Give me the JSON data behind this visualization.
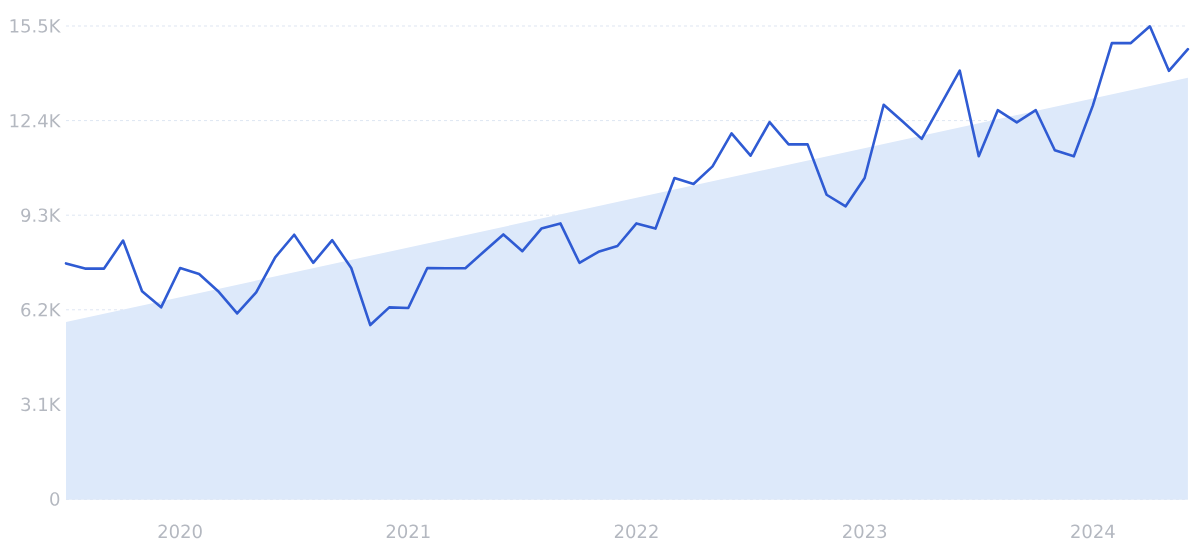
{
  "chart_data": {
    "type": "line",
    "x": [
      "2019-07",
      "2019-08",
      "2019-09",
      "2019-10",
      "2019-11",
      "2019-12",
      "2020-01",
      "2020-02",
      "2020-03",
      "2020-04",
      "2020-05",
      "2020-06",
      "2020-07",
      "2020-08",
      "2020-09",
      "2020-10",
      "2020-11",
      "2020-12",
      "2021-01",
      "2021-02",
      "2021-03",
      "2021-04",
      "2021-05",
      "2021-06",
      "2021-07",
      "2021-08",
      "2021-09",
      "2021-10",
      "2021-11",
      "2021-12",
      "2022-01",
      "2022-02",
      "2022-03",
      "2022-04",
      "2022-05",
      "2022-06",
      "2022-07",
      "2022-08",
      "2022-09",
      "2022-10",
      "2022-11",
      "2022-12",
      "2023-01",
      "2023-02",
      "2023-03",
      "2023-04",
      "2023-05",
      "2023-06",
      "2023-07",
      "2023-08",
      "2023-09",
      "2023-10",
      "2023-11",
      "2023-12",
      "2024-01",
      "2024-02",
      "2024-03",
      "2024-04",
      "2024-05",
      "2024-06"
    ],
    "series": [
      {
        "type": "area",
        "color": "#dde9fa",
        "x": [
          "2019-07",
          "2024-06"
        ],
        "values": [
          5800,
          13800
        ]
      },
      {
        "color": "#2f5bd3",
        "values": [
          7720,
          7550,
          7550,
          8470,
          6810,
          6280,
          7570,
          7370,
          6810,
          6080,
          6770,
          7920,
          8660,
          7740,
          8480,
          7570,
          5700,
          6280,
          6260,
          7570,
          7560,
          7560,
          8120,
          8670,
          8120,
          8860,
          9030,
          7740,
          8100,
          8290,
          9030,
          8860,
          10520,
          10320,
          10900,
          11980,
          11250,
          12350,
          11620,
          11620,
          9970,
          9590,
          10520,
          12920,
          12370,
          11800,
          12920,
          14040,
          11230,
          12740,
          12340,
          12740,
          11430,
          11230,
          12890,
          14940,
          14940,
          15490,
          14030,
          14740
        ]
      }
    ],
    "xlim": [
      "2019-07",
      "2024-06"
    ],
    "xticks": [
      "2020",
      "2021",
      "2022",
      "2023",
      "2024"
    ],
    "ylim": [
      0,
      15500
    ],
    "yticks": [
      0,
      {
        "value": 3100,
        "label": "3.1K"
      },
      {
        "value": 6200,
        "label": "6.2K"
      },
      {
        "value": 9300,
        "label": "9.3K"
      },
      {
        "value": 12400,
        "label": "12.4K"
      },
      {
        "value": 15500,
        "label": "15.5K"
      }
    ],
    "grid": "y"
  }
}
